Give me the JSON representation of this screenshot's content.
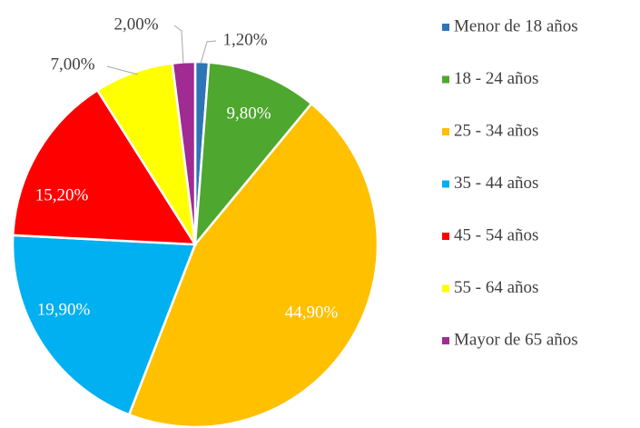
{
  "chart_data": {
    "type": "pie",
    "categories": [
      "Menor de 18 años",
      "18 - 24 años",
      "25 - 34 años",
      "35 - 44 años",
      "45 - 54 años",
      "55 - 64 años",
      "Mayor de 65 años"
    ],
    "values": [
      1.2,
      9.8,
      44.9,
      19.9,
      15.2,
      7.0,
      2.0
    ],
    "value_labels": [
      "1,20%",
      "9,80%",
      "44,90%",
      "19,90%",
      "15,20%",
      "7,00%",
      "2,00%"
    ],
    "colors": [
      "#2e75b6",
      "#4ea72e",
      "#ffc000",
      "#00b0f0",
      "#ff0000",
      "#ffff00",
      "#a02b93"
    ]
  }
}
